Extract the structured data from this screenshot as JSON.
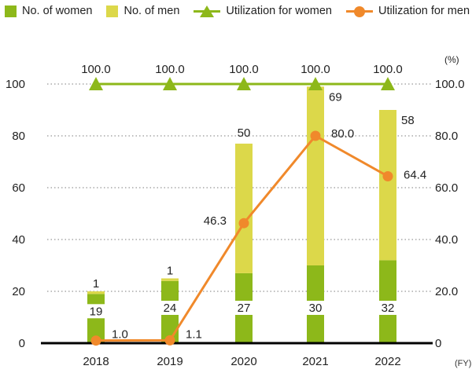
{
  "chart_data": {
    "type": "bar",
    "stacked": true,
    "categories": [
      "2018",
      "2019",
      "2020",
      "2021",
      "2022"
    ],
    "series": [
      {
        "name": "No. of women",
        "type": "bar",
        "values": [
          19,
          24,
          27,
          30,
          32
        ],
        "color": "#8db81a"
      },
      {
        "name": "No. of men",
        "type": "bar",
        "values": [
          1,
          1,
          50,
          69,
          58
        ],
        "color": "#dcd84a"
      },
      {
        "name": "Utilization for women",
        "type": "line",
        "axis": "right",
        "marker": "triangle",
        "values": [
          100.0,
          100.0,
          100.0,
          100.0,
          100.0
        ],
        "labels": [
          "100.0",
          "100.0",
          "100.0",
          "100.0",
          "100.0"
        ],
        "color": "#8db81a"
      },
      {
        "name": "Utilization for men",
        "type": "line",
        "axis": "right",
        "marker": "circle",
        "values": [
          1.0,
          1.1,
          46.3,
          80.0,
          64.4
        ],
        "labels": [
          "1.0",
          "1.1",
          "46.3",
          "80.0",
          "64.4"
        ],
        "color": "#f0892b"
      }
    ],
    "y_left": {
      "min": 0,
      "max": 100,
      "ticks": [
        "0",
        "20",
        "40",
        "60",
        "80",
        "100"
      ]
    },
    "y_right": {
      "min": 0,
      "max": 100,
      "unit": "(%)",
      "ticks": [
        "0",
        "20.0",
        "40.0",
        "60.0",
        "80.0",
        "100.0"
      ]
    },
    "x_unit": "(FY)",
    "grid": "dotted horizontal",
    "legend": "top"
  }
}
